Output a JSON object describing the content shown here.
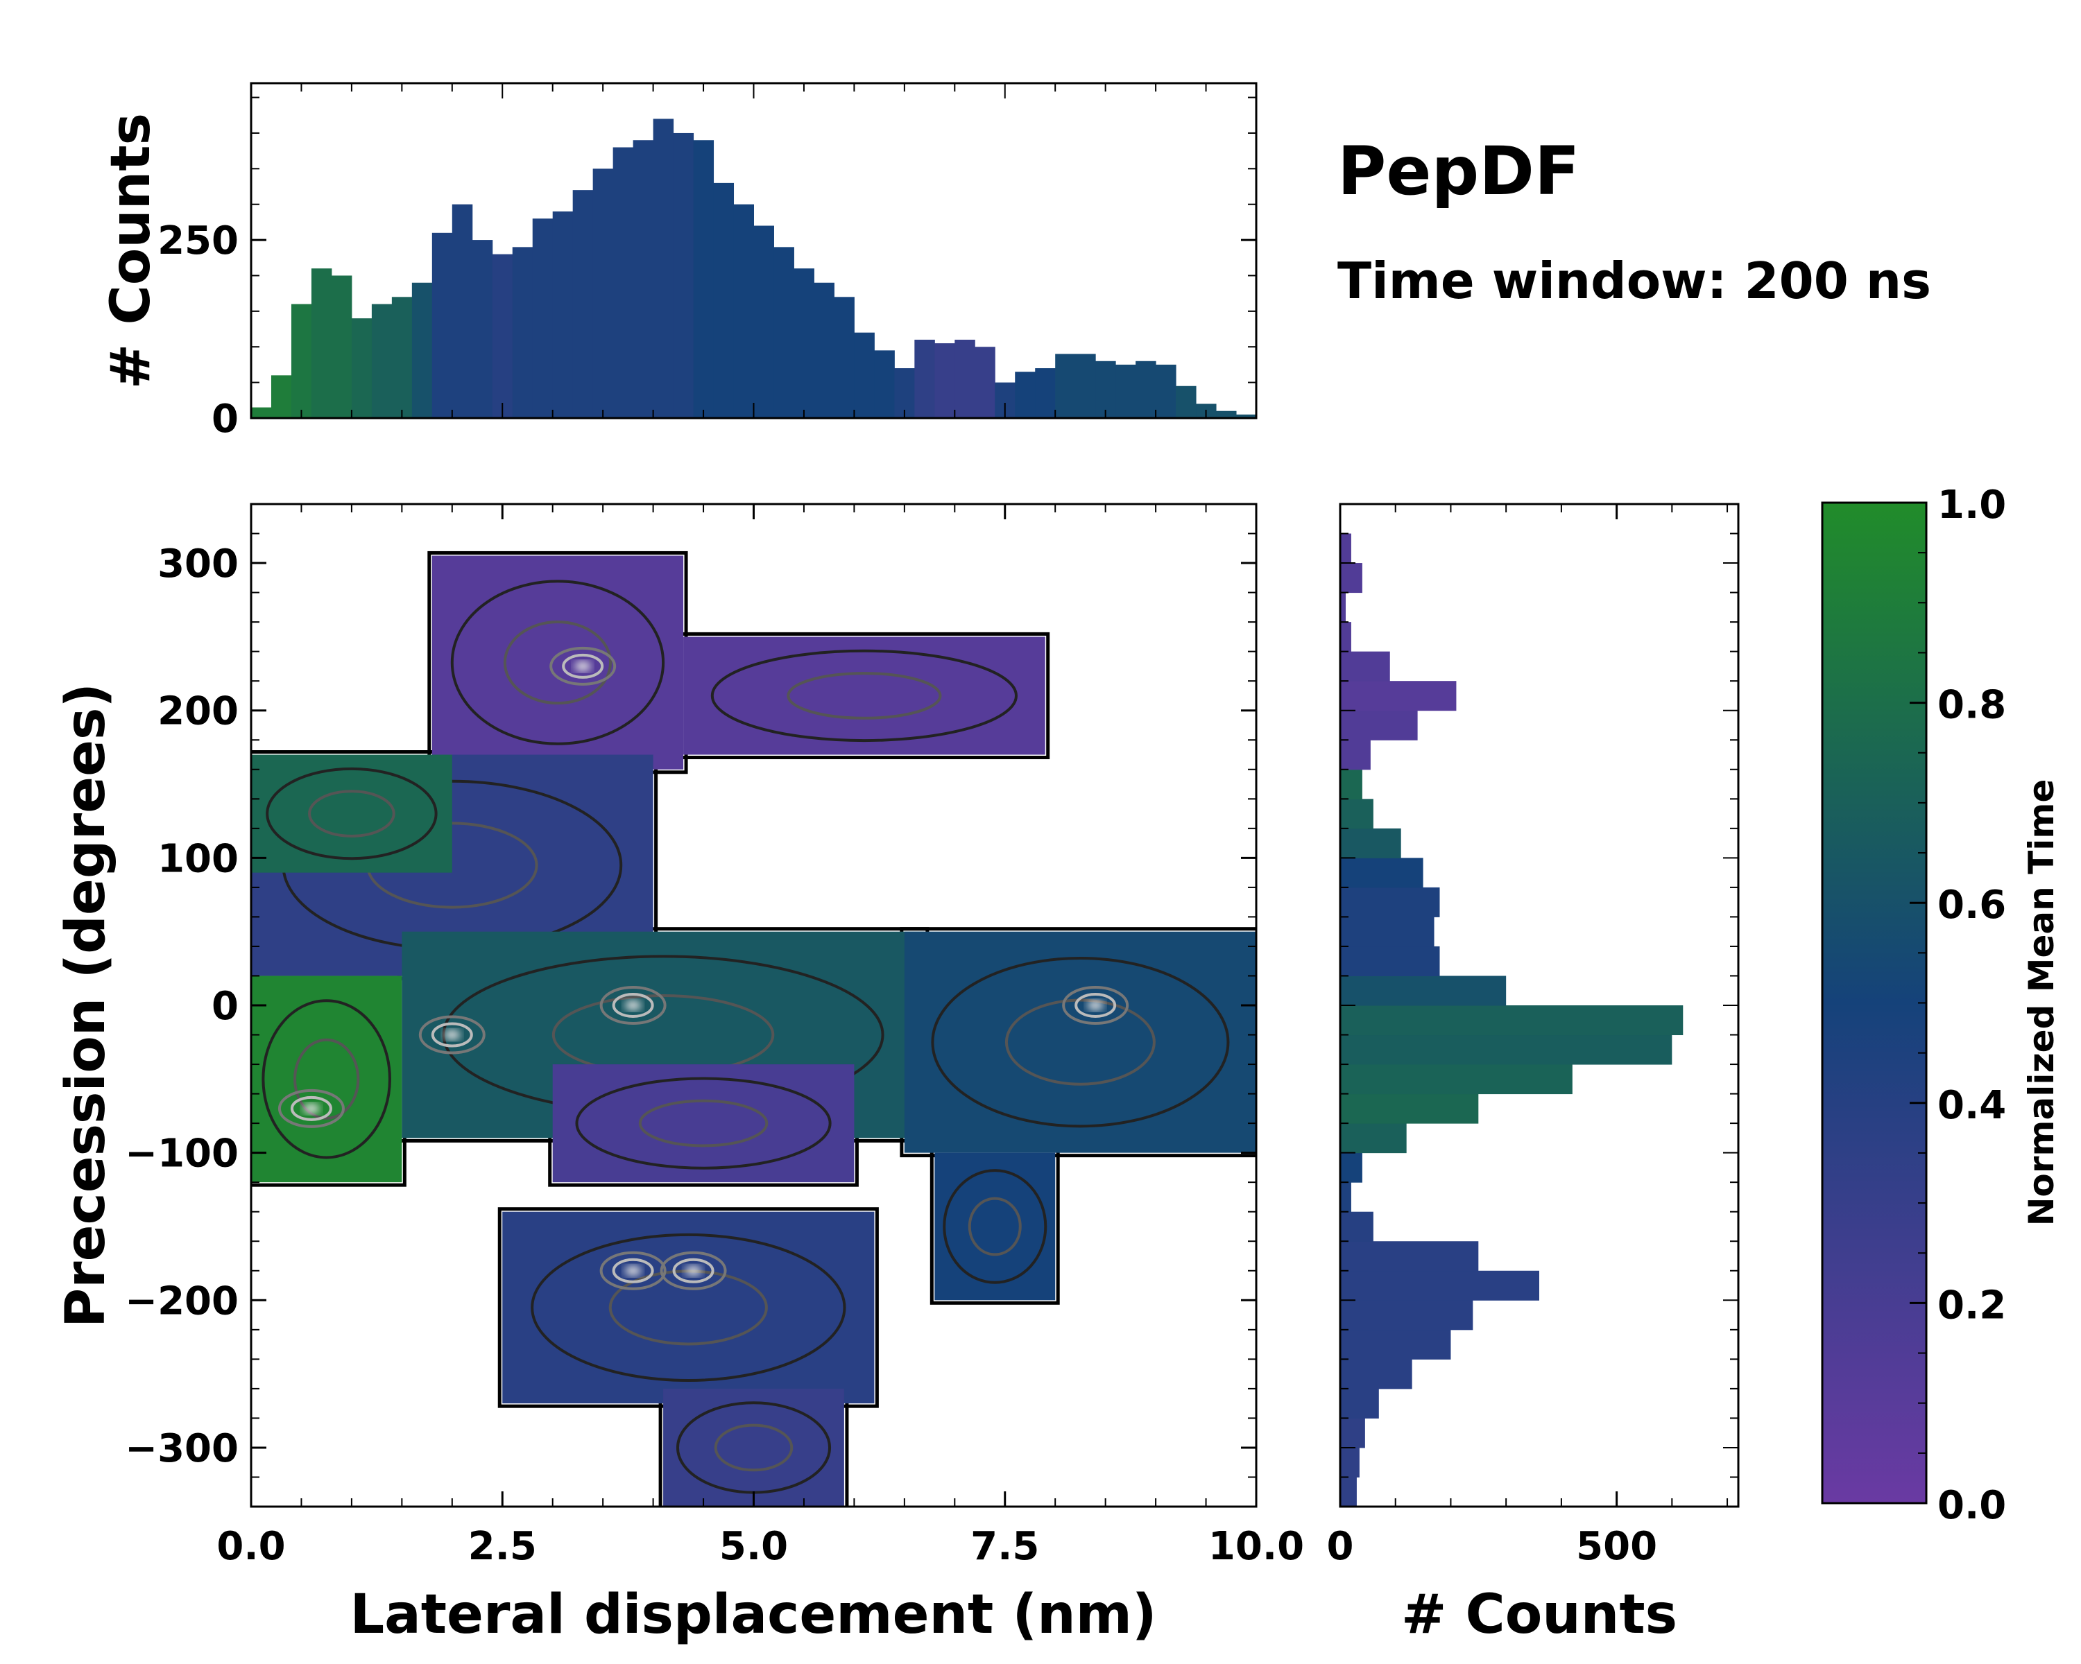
{
  "annotations": {
    "title": "PepDF",
    "subtitle": "Time window: 200 ns"
  },
  "colors": {
    "low": "#6a3aa3",
    "mid": "#15427a",
    "high": "#218c2a"
  },
  "chart_data": [
    {
      "id": "main",
      "type": "heatmap",
      "xlabel": "Lateral displacement (nm)",
      "ylabel": "Precession (degrees)",
      "xlim": [
        0,
        10
      ],
      "ylim": [
        -340,
        340
      ],
      "xticks": [
        0,
        2.5,
        5,
        7.5,
        10
      ],
      "xtick_labels": [
        "0.0",
        "2.5",
        "5.0",
        "7.5",
        "10.0"
      ],
      "yticks": [
        300,
        200,
        100,
        0,
        -100,
        -200,
        -300
      ],
      "ytick_labels": [
        "300",
        "200",
        "100",
        "0",
        "−100",
        "−200",
        "−300"
      ],
      "regions": [
        {
          "name": "top-purple-1",
          "x": [
            1.8,
            4.3
          ],
          "y": [
            160,
            305
          ],
          "t": 0.12
        },
        {
          "name": "top-purple-2",
          "x": [
            4.3,
            7.9
          ],
          "y": [
            170,
            250
          ],
          "t": 0.12
        },
        {
          "name": "upper-left-mixed",
          "x": [
            0.0,
            4.0
          ],
          "y": [
            20,
            170
          ],
          "t": 0.35
        },
        {
          "name": "upper-left-green",
          "x": [
            0.0,
            2.0
          ],
          "y": [
            90,
            170
          ],
          "t": 0.75
        },
        {
          "name": "left-green",
          "x": [
            0.0,
            1.5
          ],
          "y": [
            -120,
            20
          ],
          "t": 0.95
        },
        {
          "name": "center-band",
          "x": [
            1.5,
            6.7
          ],
          "y": [
            -90,
            50
          ],
          "t": 0.65
        },
        {
          "name": "center-purple",
          "x": [
            3.0,
            6.0
          ],
          "y": [
            -120,
            -40
          ],
          "t": 0.2
        },
        {
          "name": "right-teal",
          "x": [
            6.5,
            10.0
          ],
          "y": [
            -100,
            50
          ],
          "t": 0.55
        },
        {
          "name": "right-lower-teal",
          "x": [
            6.8,
            8.0
          ],
          "y": [
            -200,
            -100
          ],
          "t": 0.5
        },
        {
          "name": "bottom-blue",
          "x": [
            2.5,
            6.2
          ],
          "y": [
            -270,
            -140
          ],
          "t": 0.38
        },
        {
          "name": "bottom-tail",
          "x": [
            4.1,
            5.9
          ],
          "y": [
            -340,
            -260
          ],
          "t": 0.3
        }
      ],
      "hotspots": [
        {
          "x": 4.4,
          "y": -180
        },
        {
          "x": 3.8,
          "y": -180
        },
        {
          "x": 2.0,
          "y": -20
        },
        {
          "x": 3.8,
          "y": 0
        },
        {
          "x": 8.4,
          "y": 0
        },
        {
          "x": 0.6,
          "y": -70
        },
        {
          "x": 3.3,
          "y": 230
        }
      ]
    },
    {
      "id": "top-hist",
      "type": "bar",
      "ylabel": "# Counts",
      "xlim": [
        0,
        10
      ],
      "ylim": [
        0,
        470
      ],
      "yticks": [
        0,
        250
      ],
      "ytick_labels": [
        "0",
        "250"
      ],
      "bin_centers": [
        0.1,
        0.3,
        0.5,
        0.7,
        0.9,
        1.1,
        1.3,
        1.5,
        1.7,
        1.9,
        2.1,
        2.3,
        2.5,
        2.7,
        2.9,
        3.1,
        3.3,
        3.5,
        3.7,
        3.9,
        4.1,
        4.3,
        4.5,
        4.7,
        4.9,
        5.1,
        5.3,
        5.5,
        5.7,
        5.9,
        6.1,
        6.3,
        6.5,
        6.7,
        6.9,
        7.1,
        7.3,
        7.5,
        7.7,
        7.9,
        8.1,
        8.3,
        8.5,
        8.7,
        8.9,
        9.1,
        9.3,
        9.5,
        9.7,
        9.9
      ],
      "values": [
        15,
        60,
        160,
        210,
        200,
        140,
        160,
        170,
        190,
        260,
        300,
        250,
        230,
        240,
        280,
        290,
        320,
        350,
        380,
        390,
        420,
        400,
        390,
        330,
        300,
        270,
        240,
        210,
        190,
        170,
        120,
        95,
        70,
        110,
        105,
        110,
        100,
        50,
        65,
        70,
        90,
        90,
        80,
        75,
        80,
        75,
        45,
        20,
        10,
        5
      ],
      "values_t": [
        0.9,
        0.9,
        0.85,
        0.8,
        0.8,
        0.75,
        0.7,
        0.7,
        0.6,
        0.45,
        0.45,
        0.45,
        0.4,
        0.45,
        0.45,
        0.45,
        0.45,
        0.45,
        0.45,
        0.45,
        0.45,
        0.45,
        0.5,
        0.5,
        0.5,
        0.5,
        0.5,
        0.5,
        0.5,
        0.5,
        0.5,
        0.5,
        0.45,
        0.35,
        0.3,
        0.3,
        0.3,
        0.45,
        0.5,
        0.5,
        0.55,
        0.55,
        0.55,
        0.55,
        0.55,
        0.55,
        0.6,
        0.6,
        0.6,
        0.6
      ]
    },
    {
      "id": "right-hist",
      "type": "bar",
      "orientation": "horizontal",
      "xlabel": "# Counts",
      "xlim": [
        0,
        720
      ],
      "ylim": [
        -340,
        340
      ],
      "xticks": [
        0,
        500
      ],
      "xtick_labels": [
        "0",
        "500"
      ],
      "bin_centers": [
        -330,
        -310,
        -290,
        -270,
        -250,
        -230,
        -210,
        -190,
        -170,
        -150,
        -130,
        -110,
        -90,
        -70,
        -50,
        -30,
        -10,
        10,
        30,
        50,
        70,
        90,
        110,
        130,
        150,
        170,
        190,
        210,
        230,
        250,
        270,
        290,
        310
      ],
      "values": [
        30,
        35,
        45,
        70,
        130,
        200,
        240,
        360,
        250,
        60,
        20,
        40,
        120,
        250,
        420,
        600,
        620,
        300,
        180,
        170,
        180,
        150,
        110,
        60,
        40,
        55,
        140,
        210,
        90,
        20,
        10,
        40,
        20
      ],
      "values_t": [
        0.35,
        0.35,
        0.35,
        0.38,
        0.38,
        0.38,
        0.38,
        0.38,
        0.38,
        0.4,
        0.45,
        0.5,
        0.7,
        0.75,
        0.72,
        0.68,
        0.7,
        0.6,
        0.45,
        0.45,
        0.45,
        0.5,
        0.65,
        0.7,
        0.75,
        0.15,
        0.15,
        0.12,
        0.15,
        0.15,
        0.15,
        0.15,
        0.15
      ]
    },
    {
      "id": "colorbar",
      "type": "colorbar",
      "label": "Normalized Mean Time",
      "ylim": [
        0,
        1
      ],
      "ticks": [
        0,
        0.2,
        0.4,
        0.6,
        0.8,
        1.0
      ],
      "tick_labels": [
        "0.0",
        "0.2",
        "0.4",
        "0.6",
        "0.8",
        "1.0"
      ]
    }
  ]
}
